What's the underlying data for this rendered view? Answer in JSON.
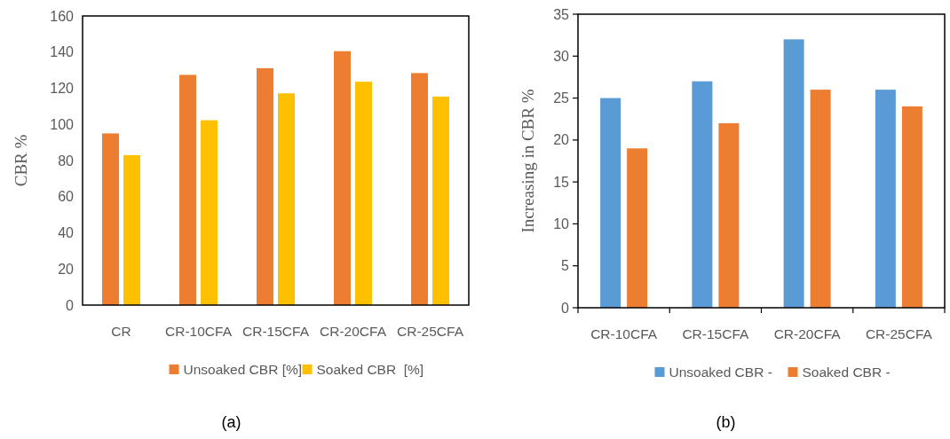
{
  "chart_data": [
    {
      "type": "bar",
      "title": "(a)",
      "ylabel": "CBR %",
      "categories": [
        "CR",
        "CR-10CFA",
        "CR-15CFA",
        "CR-20CFA",
        "CR-25CFA"
      ],
      "series": [
        {
          "name": "Unsoaked CBR [%]",
          "color": "#ed7d31",
          "values": [
            95,
            127.4,
            131.1,
            140.5,
            128.4
          ]
        },
        {
          "name": "Soaked CBR  [%]",
          "color": "#ffc000",
          "values": [
            83,
            102.3,
            117.2,
            123.6,
            115.4
          ]
        }
      ],
      "ylim": [
        0,
        160
      ],
      "yticks": [
        0,
        20,
        40,
        60,
        80,
        100,
        120,
        140,
        160
      ],
      "grid": false,
      "legend": "bottom"
    },
    {
      "type": "bar",
      "title": "(b)",
      "ylabel": "Increasing in CBR %",
      "categories": [
        "CR-10CFA",
        "CR-15CFA",
        "CR-20CFA",
        "CR-25CFA"
      ],
      "series": [
        {
          "name": "Unsoaked CBR -",
          "color": "#5b9bd5",
          "values": [
            25,
            27,
            32,
            26
          ]
        },
        {
          "name": "Soaked CBR -",
          "color": "#ed7d31",
          "values": [
            19,
            22,
            26,
            24
          ]
        }
      ],
      "ylim": [
        0,
        35
      ],
      "yticks": [
        0,
        5,
        10,
        15,
        20,
        25,
        30,
        35
      ],
      "grid": false,
      "legend": "bottom"
    }
  ]
}
